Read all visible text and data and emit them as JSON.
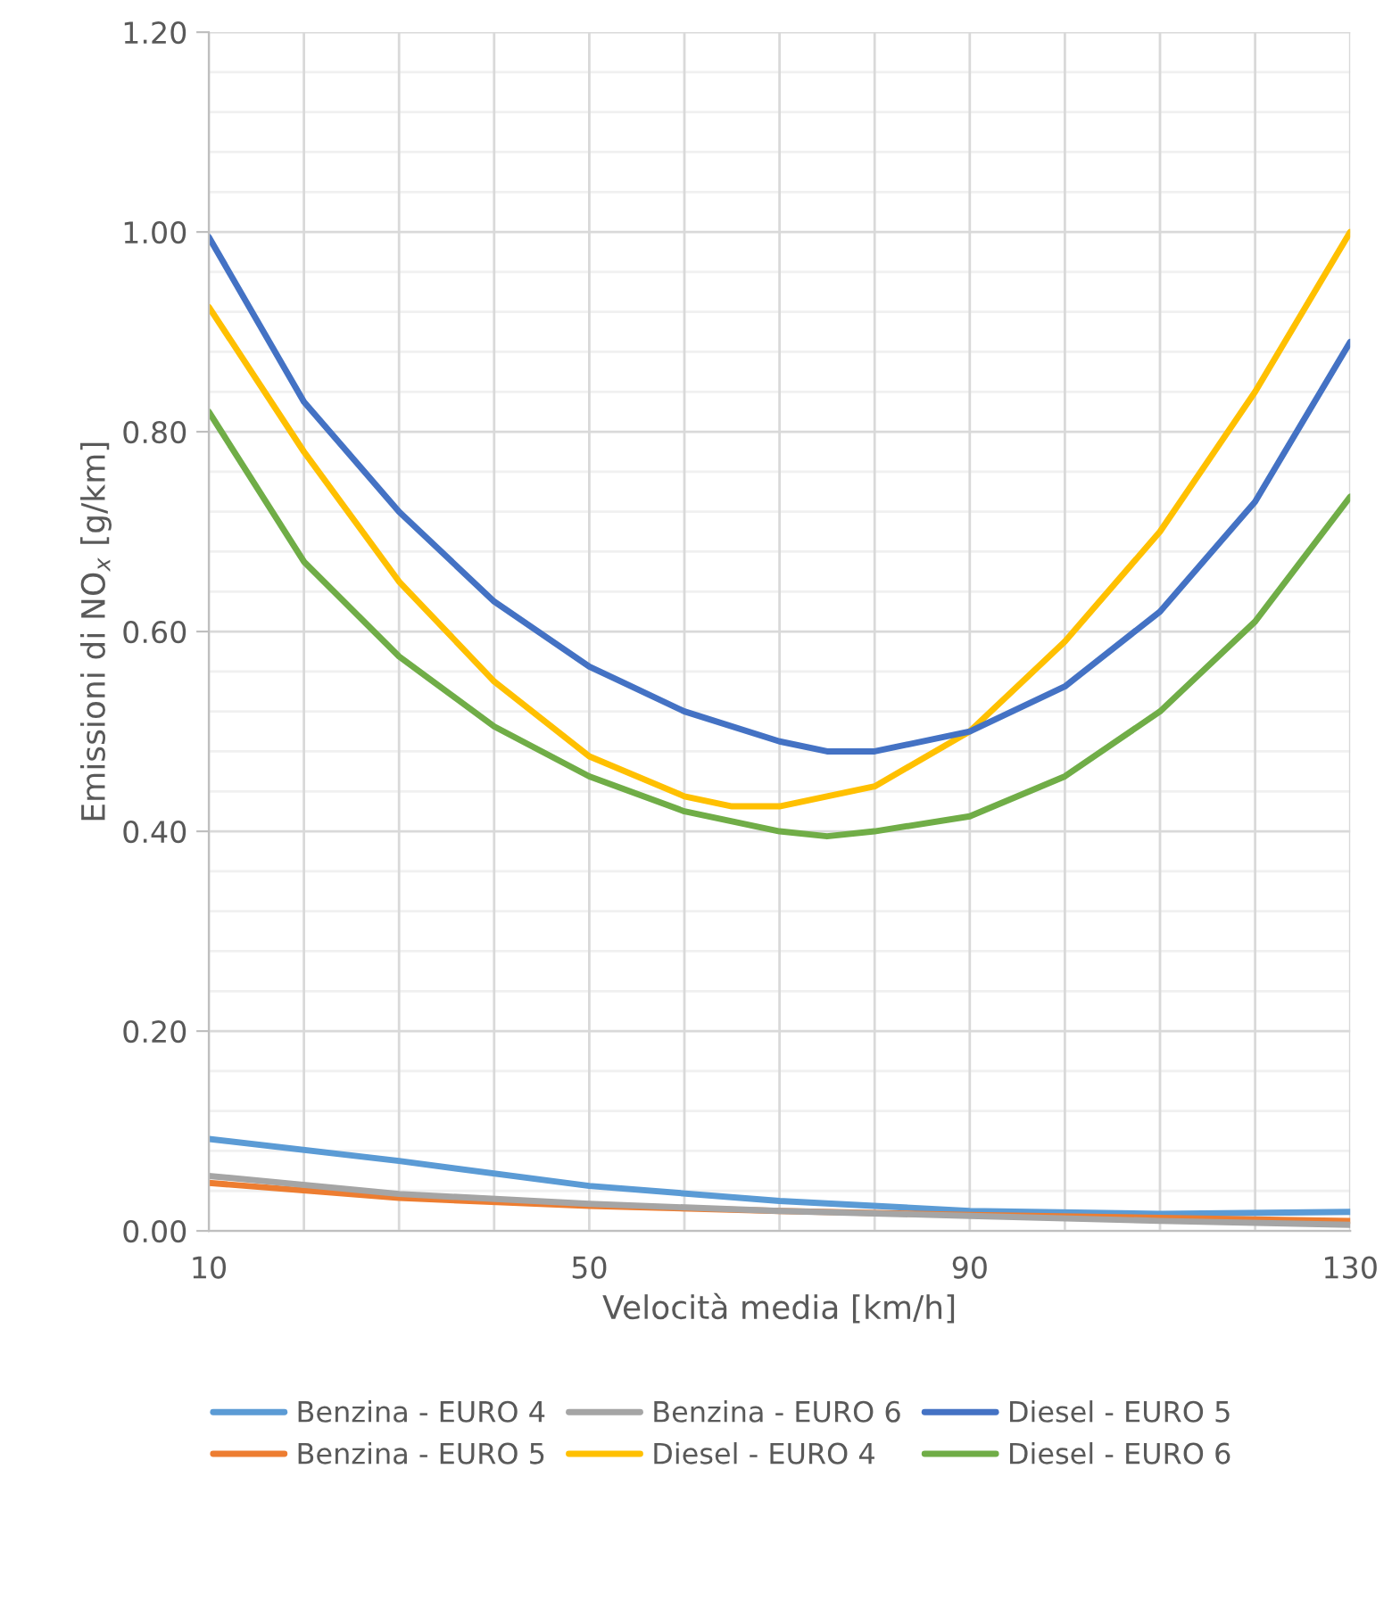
{
  "chart_data": {
    "type": "line",
    "xlabel": "Velocità media [km/h]",
    "ylabel": "Emissioni di NO$_{x}$ [g/km]",
    "xlim": [
      10,
      130
    ],
    "ylim": [
      0,
      1.2
    ],
    "xticks": [
      10,
      {
        "value": 20,
        "label": null
      },
      {
        "value": 30,
        "label": null
      },
      {
        "value": 40,
        "label": null
      },
      50,
      {
        "value": 60,
        "label": null
      },
      {
        "value": 70,
        "label": null
      },
      {
        "value": 80,
        "label": null
      },
      90,
      {
        "value": 100,
        "label": null
      },
      {
        "value": 110,
        "label": null
      },
      {
        "value": 120,
        "label": null
      },
      130
    ],
    "yticks": [
      {
        "value": 0,
        "label": "0.00"
      },
      {
        "value": 0.2,
        "label": "0.20"
      },
      {
        "value": 0.4,
        "label": "0.40"
      },
      {
        "value": 0.6,
        "label": "0.60"
      },
      {
        "value": 0.8,
        "label": "0.80"
      },
      {
        "value": 1.0,
        "label": "1.00"
      },
      {
        "value": 1.2,
        "label": "1.20"
      }
    ],
    "grid": true,
    "legend": "bottom",
    "marker": "none",
    "line_style": "solid",
    "series": [
      {
        "name": "Benzina - EURO 4",
        "color": "#5b9bd5",
        "x": [
          10,
          30,
          50,
          70,
          90,
          110,
          130
        ],
        "values": [
          0.092,
          0.07,
          0.045,
          0.03,
          0.02,
          0.017,
          0.019
        ]
      },
      {
        "name": "Benzina - EURO 5",
        "color": "#ed7d31",
        "x": [
          10,
          30,
          50,
          70,
          90,
          110,
          130
        ],
        "values": [
          0.048,
          0.033,
          0.025,
          0.02,
          0.016,
          0.013,
          0.01
        ]
      },
      {
        "name": "Benzina - EURO 6",
        "color": "#a5a5a5",
        "x": [
          10,
          30,
          50,
          70,
          90,
          110,
          130
        ],
        "values": [
          0.055,
          0.037,
          0.027,
          0.02,
          0.015,
          0.01,
          0.006
        ]
      },
      {
        "name": "Diesel - EURO 4",
        "color": "#ffc000",
        "x": [
          10,
          20,
          30,
          40,
          50,
          60,
          65,
          70,
          80,
          90,
          100,
          110,
          120,
          130
        ],
        "values": [
          0.925,
          0.78,
          0.65,
          0.55,
          0.475,
          0.435,
          0.425,
          0.425,
          0.445,
          0.5,
          0.59,
          0.7,
          0.84,
          1.0
        ]
      },
      {
        "name": "Diesel - EURO 5",
        "color": "#4472c4",
        "x": [
          10,
          20,
          30,
          40,
          50,
          60,
          70,
          75,
          80,
          90,
          100,
          110,
          120,
          130
        ],
        "values": [
          0.995,
          0.83,
          0.72,
          0.63,
          0.565,
          0.52,
          0.49,
          0.48,
          0.48,
          0.5,
          0.545,
          0.62,
          0.73,
          0.89
        ]
      },
      {
        "name": "Diesel - EURO 6",
        "color": "#70ad47",
        "x": [
          10,
          20,
          30,
          40,
          50,
          60,
          70,
          75,
          80,
          90,
          100,
          110,
          120,
          130
        ],
        "values": [
          0.82,
          0.67,
          0.575,
          0.505,
          0.455,
          0.42,
          0.4,
          0.395,
          0.4,
          0.415,
          0.455,
          0.52,
          0.61,
          0.735
        ]
      }
    ]
  }
}
